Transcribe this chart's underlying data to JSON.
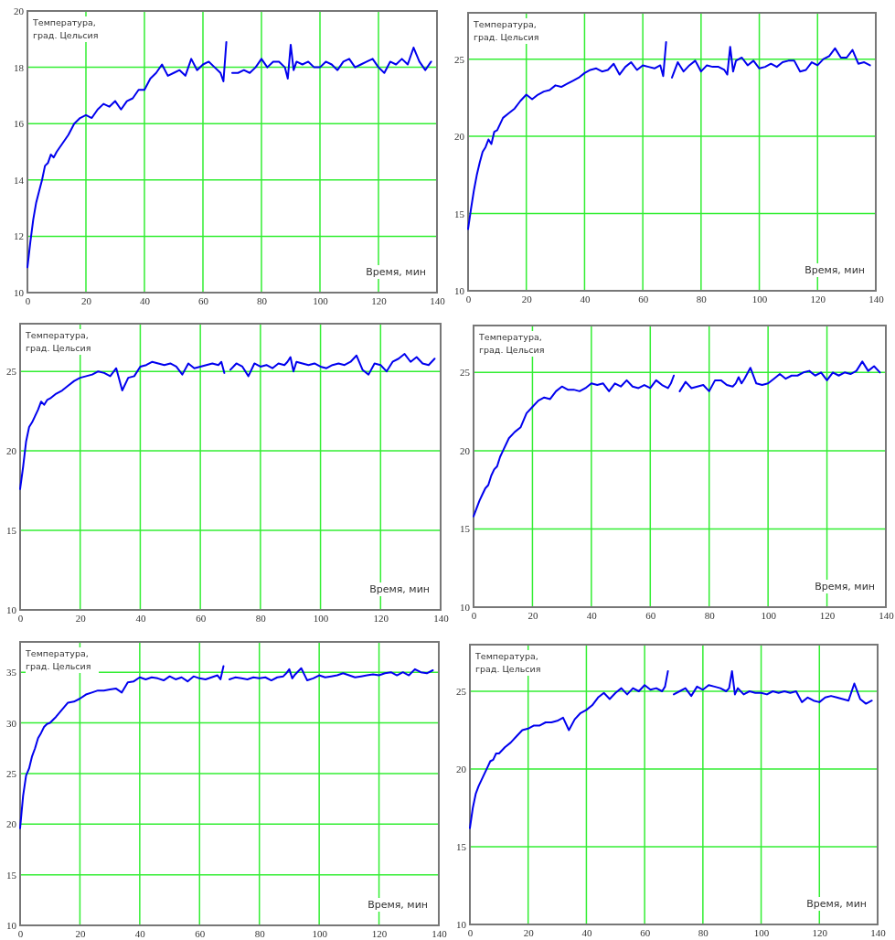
{
  "chart_data": [
    {
      "type": "line",
      "xlabel": "Время, мин",
      "ylabel": "Температура, град. Цельсия",
      "grid": true,
      "color": "#0000ee",
      "xlim": [
        0,
        140
      ],
      "xticks": [
        0,
        20,
        40,
        60,
        80,
        100,
        120,
        140
      ],
      "ylim": [
        10,
        20
      ],
      "yticks": [
        10,
        12,
        14,
        16,
        18,
        20
      ],
      "x": [
        0,
        1,
        2,
        3,
        4,
        5,
        6,
        7,
        8,
        9,
        10,
        12,
        14,
        16,
        18,
        20,
        22,
        24,
        26,
        28,
        30,
        32,
        34,
        36,
        38,
        40,
        42,
        44,
        46,
        48,
        50,
        52,
        54,
        56,
        58,
        60,
        62,
        64,
        66,
        67,
        68,
        69,
        70,
        72,
        74,
        76,
        78,
        80,
        82,
        84,
        86,
        88,
        89,
        90,
        91,
        92,
        94,
        96,
        98,
        100,
        102,
        104,
        106,
        108,
        110,
        112,
        114,
        116,
        118,
        120,
        122,
        124,
        126,
        128,
        130,
        132,
        134,
        136,
        138
      ],
      "values": [
        10.9,
        11.8,
        12.6,
        13.2,
        13.6,
        14.0,
        14.5,
        14.6,
        14.9,
        14.8,
        15.0,
        15.3,
        15.6,
        16.0,
        16.2,
        16.3,
        16.2,
        16.5,
        16.7,
        16.6,
        16.8,
        16.5,
        16.8,
        16.9,
        17.2,
        17.2,
        17.6,
        17.8,
        18.1,
        17.7,
        17.8,
        17.9,
        17.7,
        18.3,
        17.9,
        18.1,
        18.2,
        18.0,
        17.8,
        17.5,
        18.9,
        null,
        17.8,
        17.8,
        17.9,
        17.8,
        18.0,
        18.3,
        18.0,
        18.2,
        18.2,
        18.0,
        17.6,
        18.8,
        17.9,
        18.2,
        18.1,
        18.2,
        18.0,
        18.0,
        18.2,
        18.1,
        17.9,
        18.2,
        18.3,
        18.0,
        18.1,
        18.2,
        18.3,
        18.0,
        17.8,
        18.2,
        18.1,
        18.3,
        18.1,
        18.7,
        18.2,
        17.9,
        18.2
      ]
    },
    {
      "type": "line",
      "xlabel": "Время, мин",
      "ylabel": "Температура, град. Цельсия",
      "grid": true,
      "color": "#0000ee",
      "xlim": [
        0,
        140
      ],
      "xticks": [
        0,
        20,
        40,
        60,
        80,
        100,
        120,
        140
      ],
      "ylim": [
        10,
        28
      ],
      "yticks": [
        10,
        15,
        20,
        25
      ],
      "x": [
        0,
        1,
        2,
        3,
        4,
        5,
        6,
        7,
        8,
        9,
        10,
        12,
        14,
        16,
        18,
        20,
        22,
        24,
        26,
        28,
        30,
        32,
        34,
        36,
        38,
        40,
        42,
        44,
        46,
        48,
        50,
        52,
        54,
        56,
        58,
        60,
        62,
        64,
        66,
        67,
        68,
        69,
        70,
        72,
        74,
        76,
        78,
        80,
        82,
        84,
        86,
        88,
        89,
        90,
        91,
        92,
        94,
        96,
        98,
        100,
        102,
        104,
        106,
        108,
        110,
        112,
        114,
        116,
        118,
        120,
        122,
        124,
        126,
        128,
        130,
        132,
        134,
        136,
        138
      ],
      "values": [
        14.0,
        15.3,
        16.5,
        17.5,
        18.3,
        19.0,
        19.3,
        19.8,
        19.5,
        20.3,
        20.4,
        21.2,
        21.5,
        21.8,
        22.3,
        22.7,
        22.4,
        22.7,
        22.9,
        23.0,
        23.3,
        23.2,
        23.4,
        23.6,
        23.8,
        24.1,
        24.3,
        24.4,
        24.2,
        24.3,
        24.7,
        24.0,
        24.5,
        24.8,
        24.3,
        24.6,
        24.5,
        24.4,
        24.6,
        23.9,
        26.1,
        null,
        23.8,
        24.8,
        24.2,
        24.6,
        24.9,
        24.2,
        24.6,
        24.5,
        24.5,
        24.3,
        24.0,
        25.8,
        24.2,
        24.9,
        25.1,
        24.6,
        24.9,
        24.4,
        24.5,
        24.7,
        24.5,
        24.8,
        24.9,
        24.9,
        24.2,
        24.3,
        24.8,
        24.6,
        25.0,
        25.2,
        25.7,
        25.1,
        25.1,
        25.6,
        24.7,
        24.8,
        24.6
      ]
    },
    {
      "type": "line",
      "xlabel": "Время, мин",
      "ylabel": "Температура, град. Цельсия",
      "grid": true,
      "color": "#0000ee",
      "xlim": [
        0,
        140
      ],
      "xticks": [
        0,
        20,
        40,
        60,
        80,
        100,
        120,
        140
      ],
      "ylim": [
        10,
        28
      ],
      "yticks": [
        10,
        15,
        20,
        25
      ],
      "x": [
        0,
        1,
        2,
        3,
        4,
        5,
        6,
        7,
        8,
        9,
        10,
        12,
        14,
        16,
        18,
        20,
        22,
        24,
        26,
        28,
        30,
        32,
        34,
        36,
        38,
        40,
        42,
        44,
        46,
        48,
        50,
        52,
        54,
        56,
        58,
        60,
        62,
        64,
        66,
        67,
        68,
        69,
        70,
        72,
        74,
        76,
        78,
        80,
        82,
        84,
        86,
        88,
        89,
        90,
        91,
        92,
        94,
        96,
        98,
        100,
        102,
        104,
        106,
        108,
        110,
        112,
        114,
        116,
        118,
        120,
        122,
        124,
        126,
        128,
        130,
        132,
        134,
        136,
        138
      ],
      "values": [
        17.6,
        19.0,
        20.6,
        21.5,
        21.8,
        22.2,
        22.6,
        23.1,
        22.9,
        23.2,
        23.3,
        23.6,
        23.8,
        24.1,
        24.4,
        24.6,
        24.7,
        24.8,
        25.0,
        24.9,
        24.7,
        25.2,
        23.8,
        24.6,
        24.7,
        25.3,
        25.4,
        25.6,
        25.5,
        25.4,
        25.5,
        25.3,
        24.8,
        25.5,
        25.2,
        25.3,
        25.4,
        25.5,
        25.4,
        25.6,
        24.9,
        null,
        25.1,
        25.5,
        25.3,
        24.7,
        25.5,
        25.3,
        25.4,
        25.2,
        25.5,
        25.4,
        25.6,
        25.9,
        25.0,
        25.6,
        25.5,
        25.4,
        25.5,
        25.3,
        25.2,
        25.4,
        25.5,
        25.4,
        25.6,
        26.0,
        25.1,
        24.8,
        25.5,
        25.4,
        25.0,
        25.6,
        25.8,
        26.1,
        25.6,
        25.9,
        25.5,
        25.4,
        25.8
      ]
    },
    {
      "type": "line",
      "xlabel": "Время, мин",
      "ylabel": "Температура, град. Цельсия",
      "grid": true,
      "color": "#0000ee",
      "xlim": [
        0,
        140
      ],
      "xticks": [
        0,
        20,
        40,
        60,
        80,
        100,
        120,
        140
      ],
      "ylim": [
        10,
        28
      ],
      "yticks": [
        10,
        15,
        20,
        25
      ],
      "x": [
        0,
        1,
        2,
        3,
        4,
        5,
        6,
        7,
        8,
        9,
        10,
        12,
        14,
        16,
        18,
        20,
        22,
        24,
        26,
        28,
        30,
        32,
        34,
        36,
        38,
        40,
        42,
        44,
        46,
        48,
        50,
        52,
        54,
        56,
        58,
        60,
        62,
        64,
        66,
        67,
        68,
        69,
        70,
        72,
        74,
        76,
        78,
        80,
        82,
        84,
        86,
        88,
        89,
        90,
        91,
        92,
        94,
        96,
        98,
        100,
        102,
        104,
        106,
        108,
        110,
        112,
        114,
        116,
        118,
        120,
        122,
        124,
        126,
        128,
        130,
        132,
        134,
        136,
        138
      ],
      "values": [
        15.8,
        16.3,
        16.8,
        17.2,
        17.6,
        17.8,
        18.4,
        18.8,
        19.0,
        19.6,
        20.0,
        20.8,
        21.2,
        21.5,
        22.4,
        22.8,
        23.2,
        23.4,
        23.3,
        23.8,
        24.1,
        23.9,
        23.9,
        23.8,
        24.0,
        24.3,
        24.2,
        24.3,
        23.8,
        24.3,
        24.1,
        24.5,
        24.1,
        24.0,
        24.2,
        24.0,
        24.5,
        24.2,
        24.0,
        24.3,
        24.8,
        null,
        23.8,
        24.4,
        24.0,
        24.1,
        24.2,
        23.8,
        24.5,
        24.5,
        24.2,
        24.1,
        24.3,
        24.7,
        24.3,
        24.6,
        25.3,
        24.3,
        24.2,
        24.3,
        24.6,
        24.9,
        24.6,
        24.8,
        24.8,
        25.0,
        25.1,
        24.8,
        25.0,
        24.5,
        25.0,
        24.8,
        25.0,
        24.9,
        25.1,
        25.7,
        25.1,
        25.4,
        25.0
      ]
    },
    {
      "type": "line",
      "xlabel": "Время, мин",
      "ylabel": "Температура, град. Цельсия",
      "grid": true,
      "color": "#0000ee",
      "xlim": [
        0,
        140
      ],
      "xticks": [
        0,
        20,
        40,
        60,
        80,
        100,
        120,
        140
      ],
      "ylim": [
        10,
        38
      ],
      "yticks": [
        10,
        15,
        20,
        25,
        30,
        35
      ],
      "x": [
        0,
        1,
        2,
        3,
        4,
        5,
        6,
        7,
        8,
        9,
        10,
        12,
        14,
        16,
        18,
        20,
        22,
        24,
        26,
        28,
        30,
        32,
        34,
        36,
        38,
        40,
        42,
        44,
        46,
        48,
        50,
        52,
        54,
        56,
        58,
        60,
        62,
        64,
        66,
        67,
        68,
        69,
        70,
        72,
        74,
        76,
        78,
        80,
        82,
        84,
        86,
        88,
        89,
        90,
        91,
        92,
        94,
        96,
        98,
        100,
        102,
        104,
        106,
        108,
        110,
        112,
        114,
        116,
        118,
        120,
        122,
        124,
        126,
        128,
        130,
        132,
        134,
        136,
        138
      ],
      "values": [
        19.6,
        22.8,
        24.8,
        25.5,
        26.7,
        27.5,
        28.5,
        29.0,
        29.6,
        29.9,
        30.0,
        30.6,
        31.3,
        32.0,
        32.1,
        32.4,
        32.8,
        33.0,
        33.2,
        33.2,
        33.3,
        33.4,
        33.0,
        34.0,
        34.1,
        34.5,
        34.3,
        34.5,
        34.4,
        34.2,
        34.6,
        34.3,
        34.5,
        34.1,
        34.6,
        34.4,
        34.3,
        34.5,
        34.7,
        34.3,
        35.6,
        null,
        34.3,
        34.5,
        34.4,
        34.3,
        34.5,
        34.4,
        34.5,
        34.2,
        34.5,
        34.6,
        34.9,
        35.3,
        34.4,
        34.8,
        35.4,
        34.2,
        34.4,
        34.7,
        34.5,
        34.6,
        34.7,
        34.9,
        34.7,
        34.5,
        34.6,
        34.7,
        34.8,
        34.7,
        34.9,
        35.0,
        34.7,
        35.0,
        34.7,
        35.3,
        35.0,
        34.9,
        35.2
      ]
    },
    {
      "type": "line",
      "xlabel": "Время, мин",
      "ylabel": "Температура, град. Цельсия",
      "grid": true,
      "color": "#0000ee",
      "xlim": [
        0,
        140
      ],
      "xticks": [
        0,
        20,
        40,
        60,
        80,
        100,
        120,
        140
      ],
      "ylim": [
        10,
        28
      ],
      "yticks": [
        10,
        15,
        20,
        25
      ],
      "x": [
        0,
        1,
        2,
        3,
        4,
        5,
        6,
        7,
        8,
        9,
        10,
        12,
        14,
        16,
        18,
        20,
        22,
        24,
        26,
        28,
        30,
        32,
        34,
        36,
        38,
        40,
        42,
        44,
        46,
        48,
        50,
        52,
        54,
        56,
        58,
        60,
        62,
        64,
        66,
        67,
        68,
        69,
        70,
        72,
        74,
        76,
        78,
        80,
        82,
        84,
        86,
        88,
        89,
        90,
        91,
        92,
        94,
        96,
        98,
        100,
        102,
        104,
        106,
        108,
        110,
        112,
        114,
        116,
        118,
        120,
        122,
        124,
        126,
        128,
        130,
        132,
        134,
        136,
        138
      ],
      "values": [
        16.2,
        17.5,
        18.4,
        18.9,
        19.3,
        19.7,
        20.1,
        20.5,
        20.6,
        21.0,
        21.0,
        21.4,
        21.7,
        22.1,
        22.5,
        22.6,
        22.8,
        22.8,
        23.0,
        23.0,
        23.1,
        23.3,
        22.5,
        23.2,
        23.6,
        23.8,
        24.1,
        24.6,
        24.9,
        24.5,
        24.9,
        25.2,
        24.8,
        25.2,
        25.0,
        25.4,
        25.1,
        25.2,
        25.0,
        25.3,
        26.3,
        null,
        24.8,
        25.0,
        25.2,
        24.7,
        25.3,
        25.1,
        25.4,
        25.3,
        25.2,
        25.0,
        25.2,
        26.3,
        24.8,
        25.2,
        24.8,
        25.0,
        24.9,
        24.9,
        24.8,
        25.0,
        24.9,
        25.0,
        24.9,
        25.0,
        24.3,
        24.6,
        24.4,
        24.3,
        24.6,
        24.7,
        24.6,
        24.5,
        24.4,
        25.5,
        24.5,
        24.2,
        24.4
      ]
    }
  ]
}
